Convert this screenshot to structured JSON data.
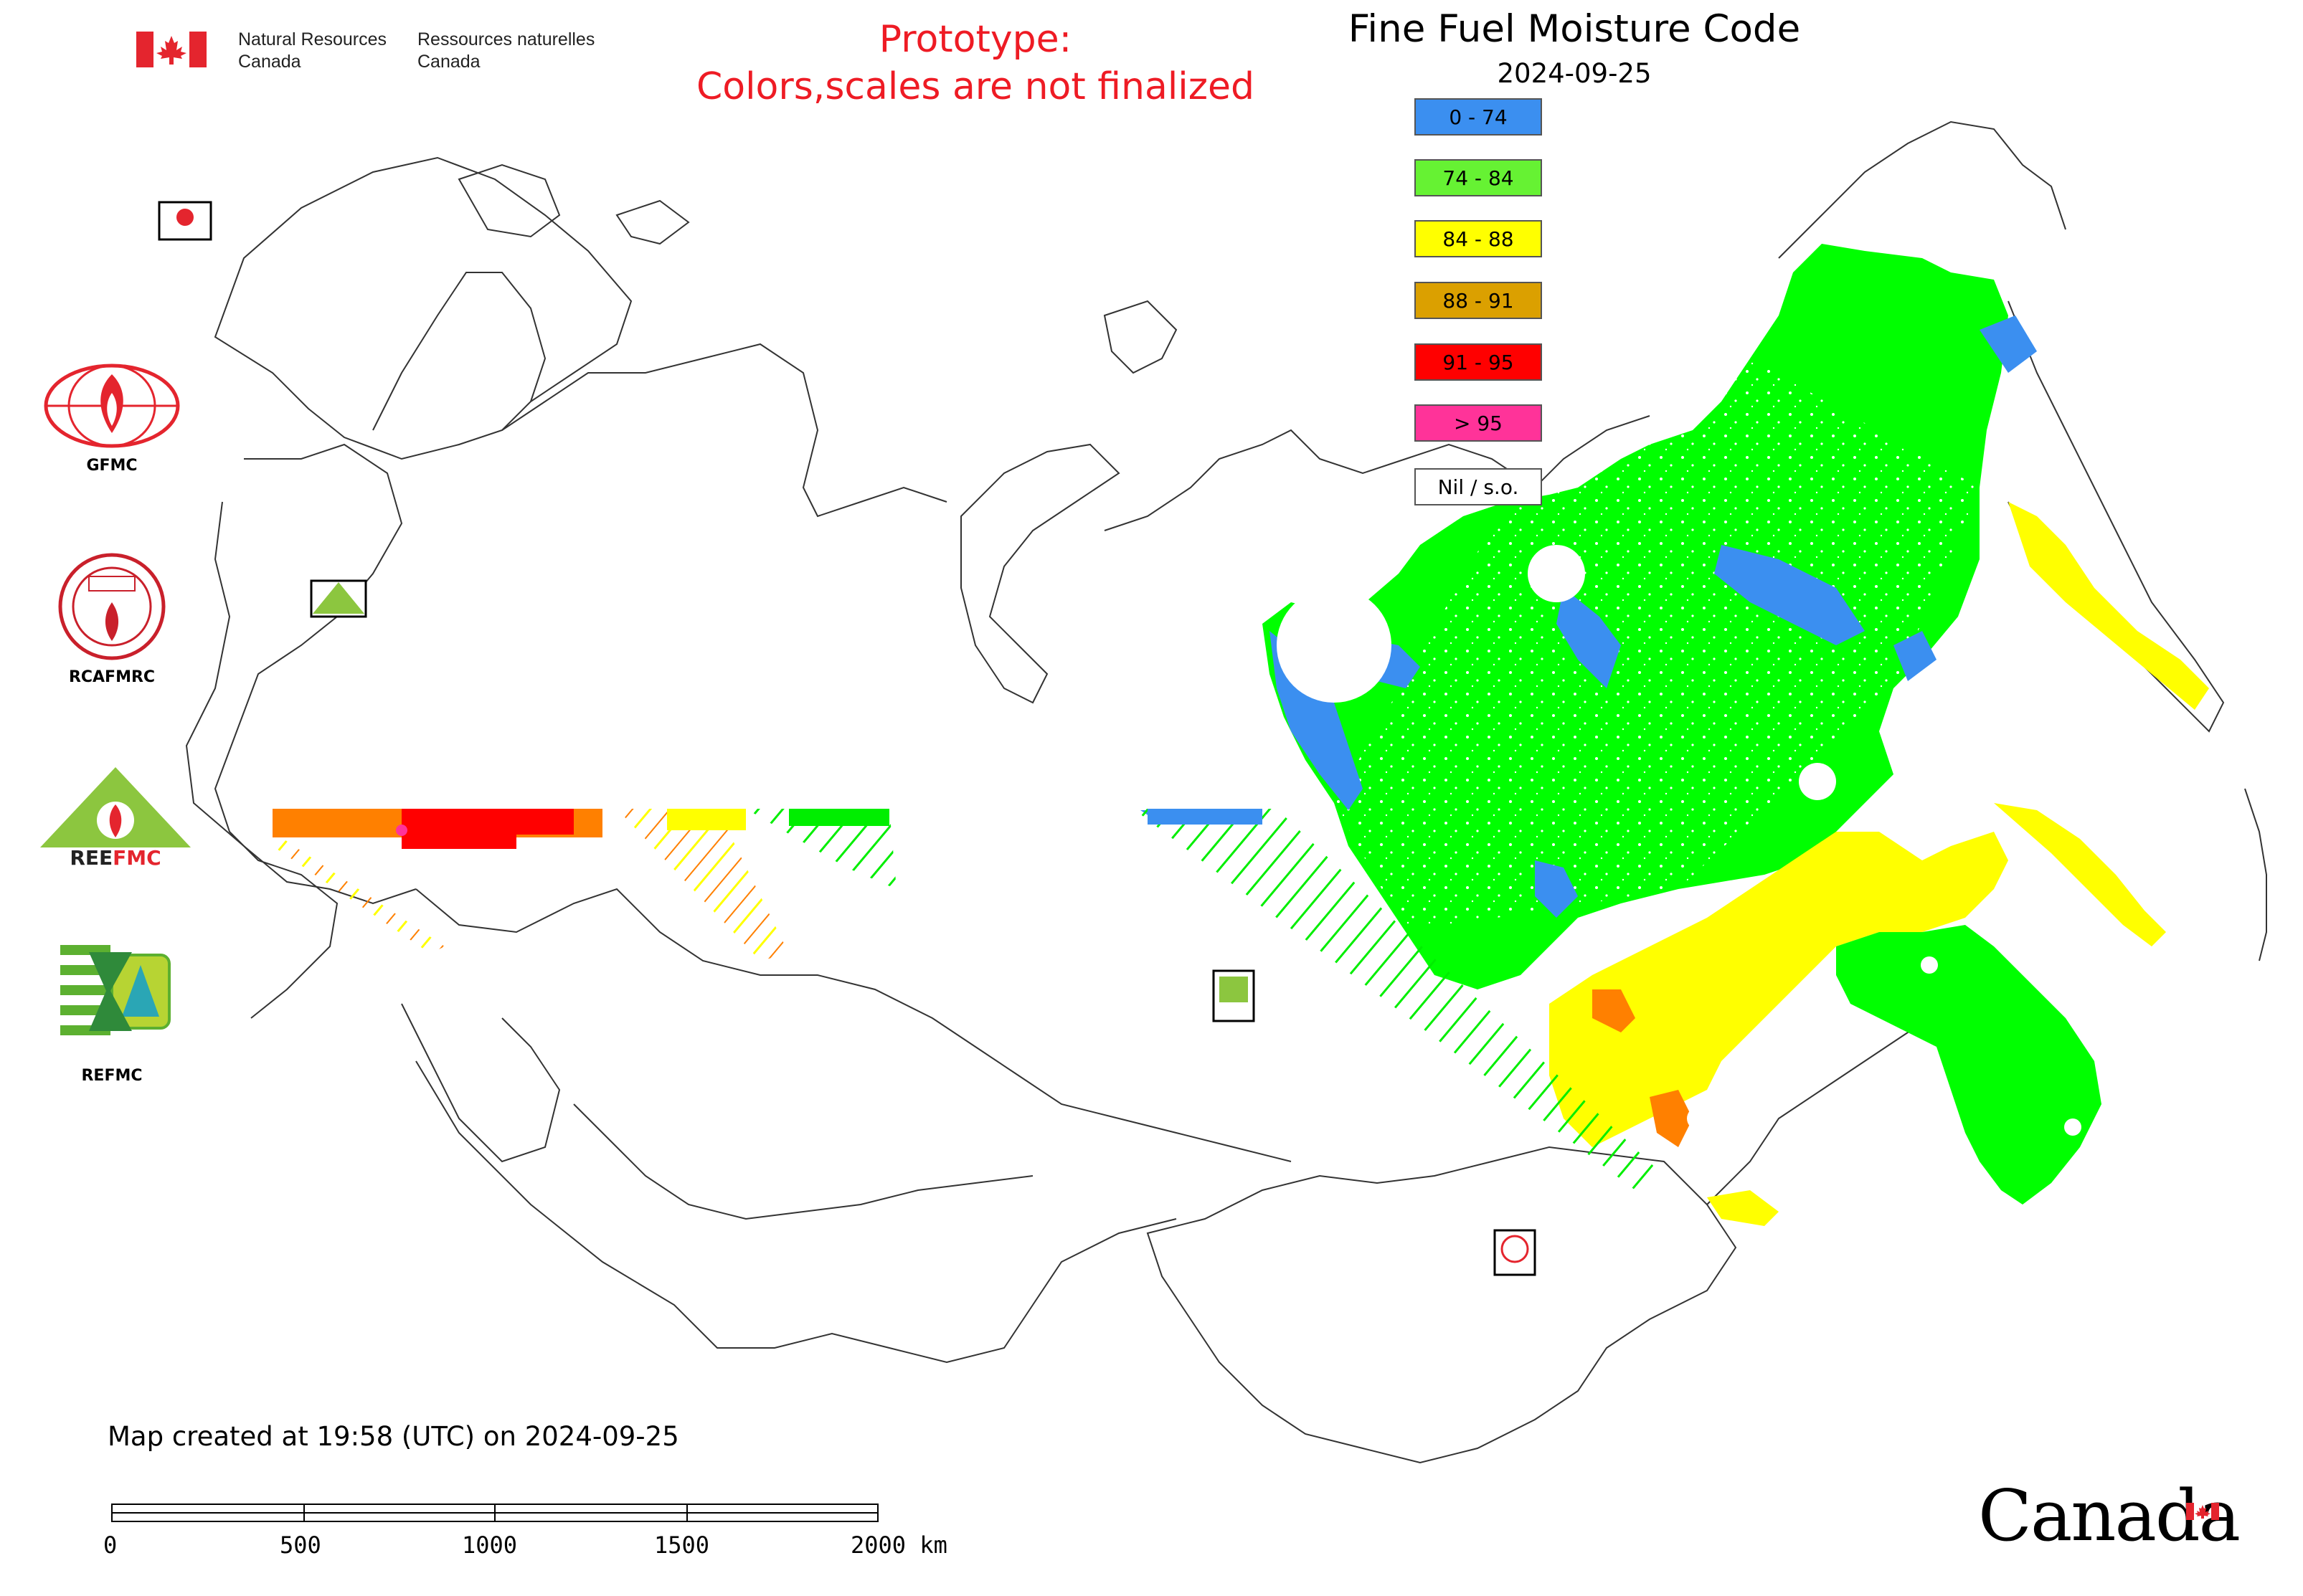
{
  "header": {
    "org_en_line1": "Natural Resources",
    "org_en_line2": "Canada",
    "org_fr_line1": "Ressources naturelles",
    "org_fr_line2": "Canada",
    "flag_icon": "canada-flag-icon"
  },
  "notice": {
    "line1": "Prototype:",
    "line2": "Colors,scales are not finalized",
    "color": "#ee1b24"
  },
  "map": {
    "title": "Fine Fuel Moisture Code",
    "date": "2024-09-25",
    "created": "Map created at 19:58 (UTC) on 2024-09-25"
  },
  "legend": [
    {
      "label": "0 - 74",
      "color": "#3b8ff0"
    },
    {
      "label": "74 - 84",
      "color": "#66f233"
    },
    {
      "label": "84 - 88",
      "color": "#ffff00"
    },
    {
      "label": "88 - 91",
      "color": "#dba000"
    },
    {
      "label": "91 - 95",
      "color": "#ff0000"
    },
    {
      "label": "> 95",
      "color": "#ff3399"
    },
    {
      "label": "Nil / s.o.",
      "color": "#ffffff"
    }
  ],
  "logos": [
    {
      "label": "GFMC",
      "icon": "gfmc-logo"
    },
    {
      "label": "RCAFMRC",
      "icon": "rcafmrc-logo"
    },
    {
      "label": "",
      "icon": "reefmc-logo"
    },
    {
      "label": "REFMC",
      "icon": "refmc-logo"
    }
  ],
  "scale_bar": {
    "ticks": [
      "0",
      "500",
      "1000",
      "1500",
      "2000 km"
    ]
  },
  "footer": {
    "wordmark": "Canada"
  },
  "colors": {
    "low": "#3b8ff0",
    "moderate": "#00ff00",
    "high": "#ffff00",
    "very_high": "#dba000",
    "extreme_orange": "#ff8000",
    "extreme": "#ff0000"
  }
}
